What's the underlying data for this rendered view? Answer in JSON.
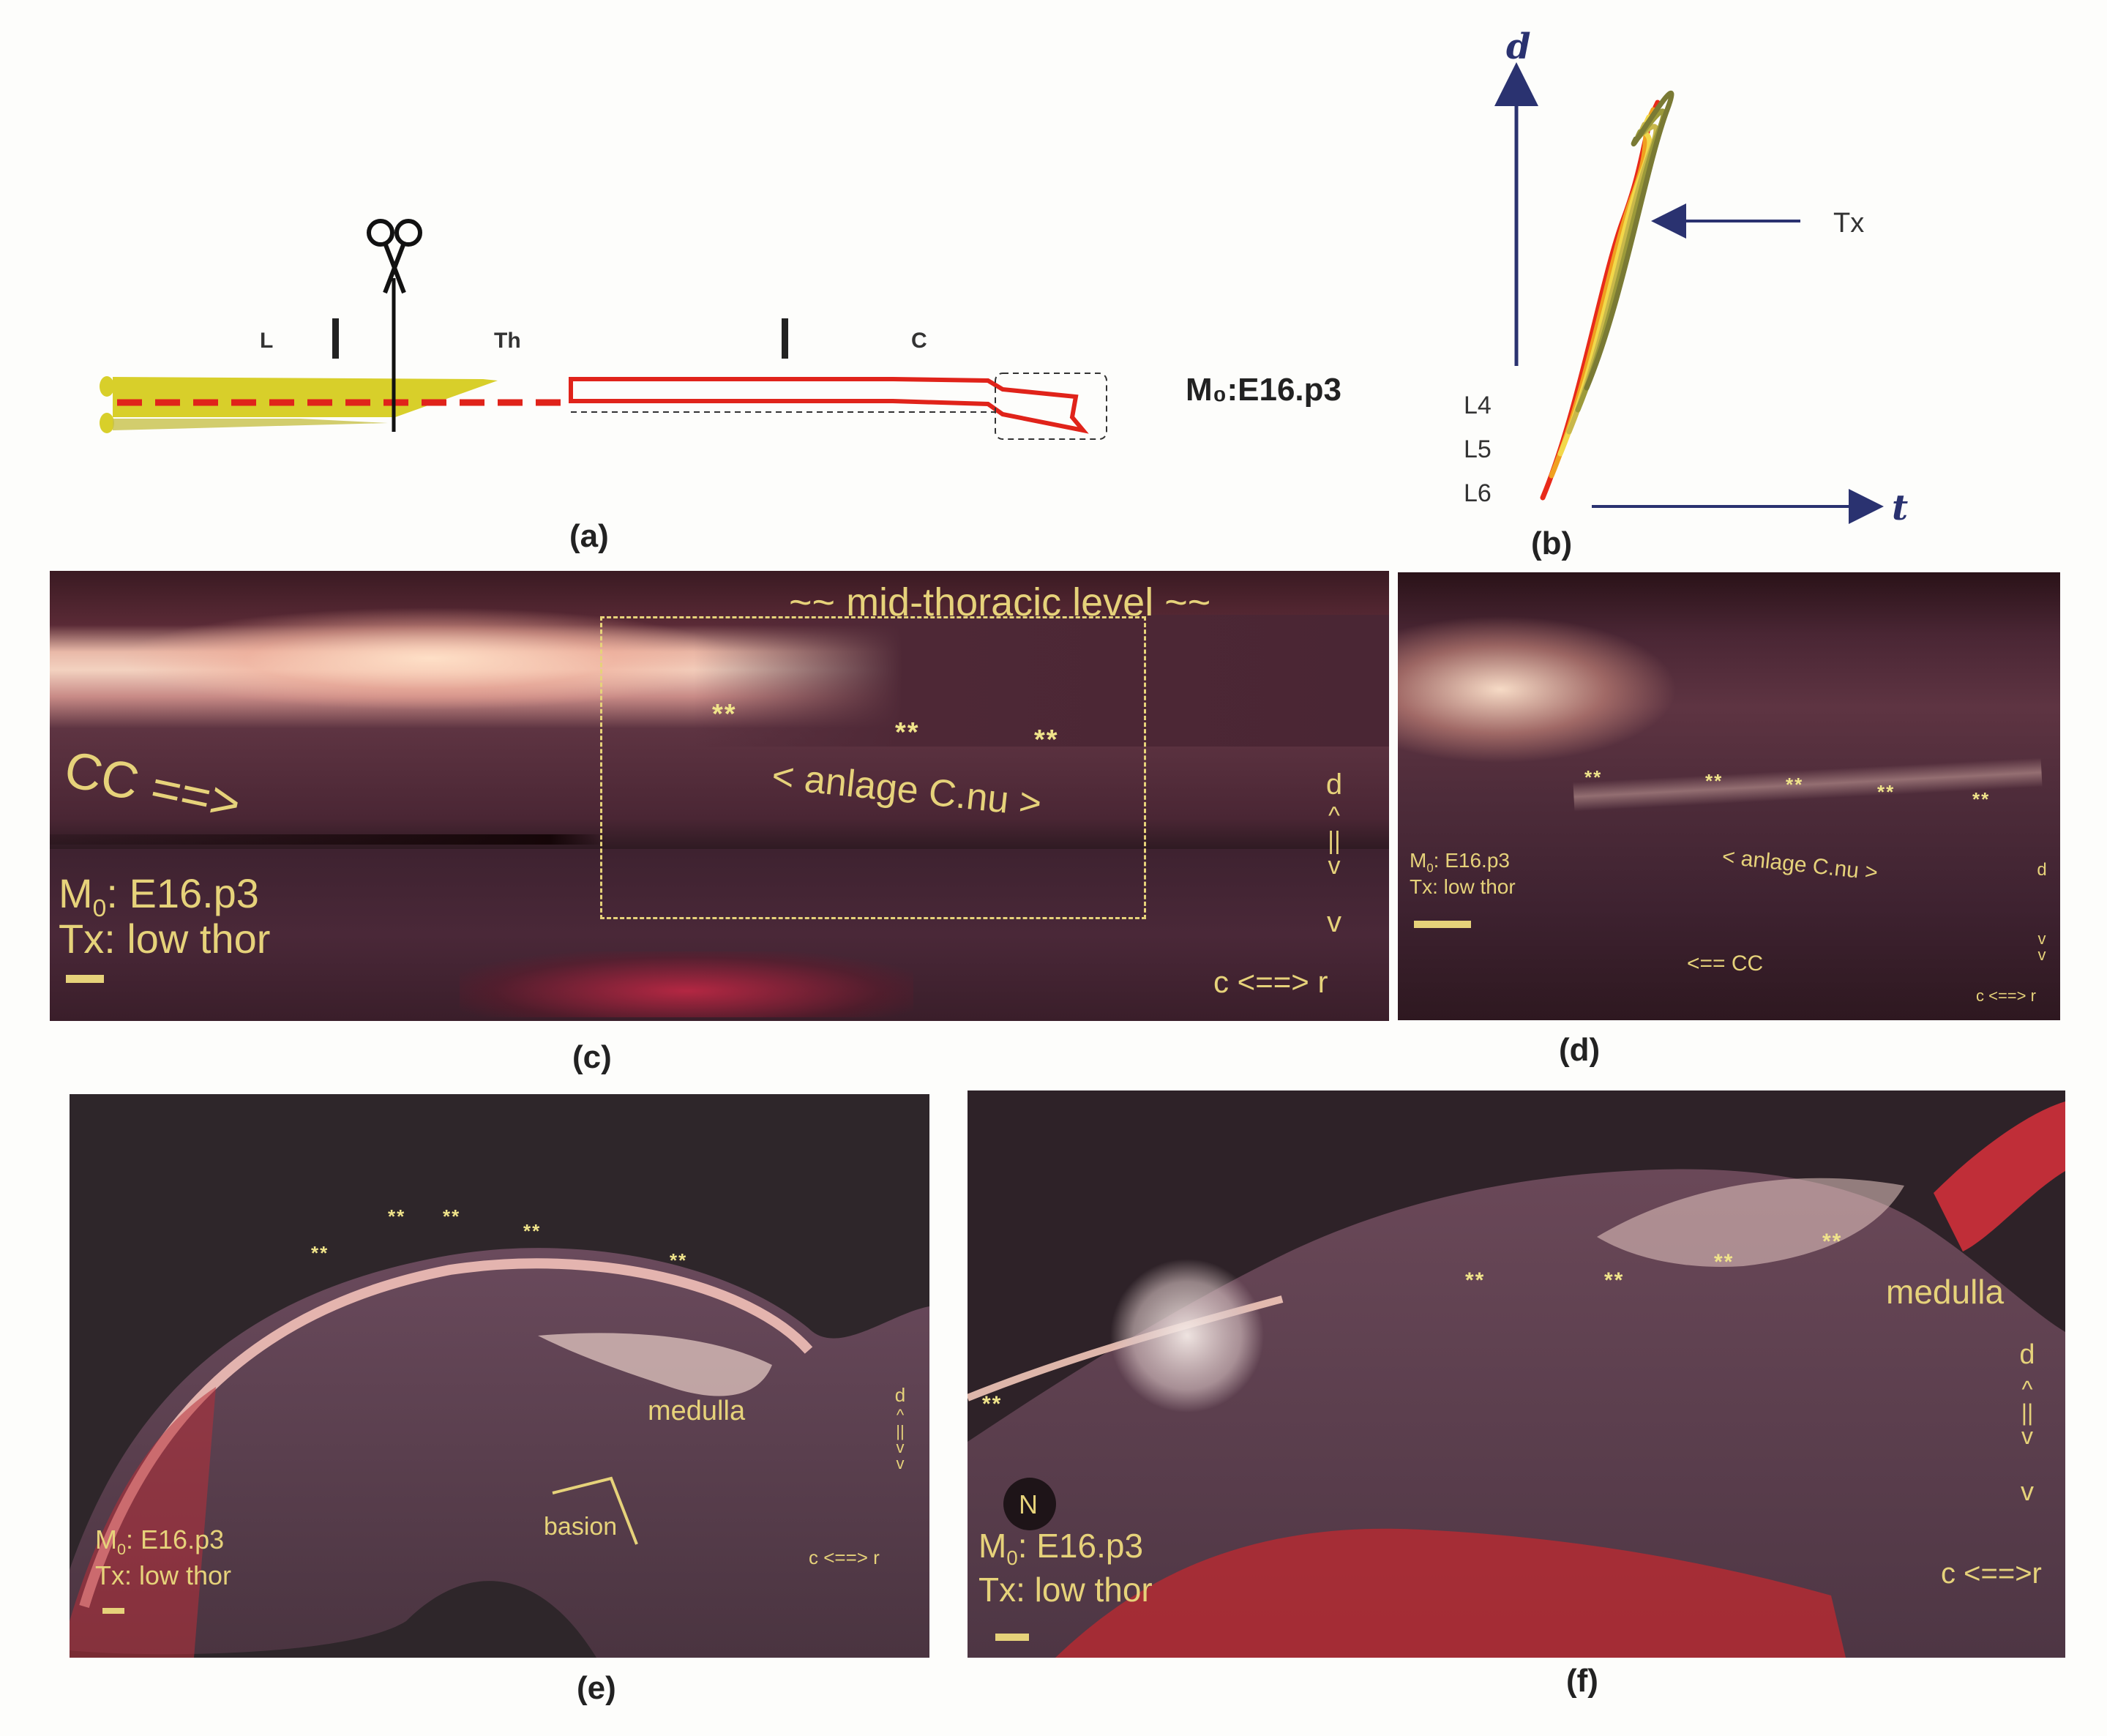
{
  "panels": {
    "a": {
      "label": "(a)",
      "seg_L": "L",
      "seg_Th": "Th",
      "seg_C": "C",
      "model": "M₀:E16.p3",
      "scissors": "scissors-icon"
    },
    "b": {
      "label": "(b)",
      "axis_d": "d",
      "axis_t": "t",
      "tx": "Tx",
      "levels": [
        "L4",
        "L5",
        "L6"
      ],
      "colors": [
        "#e82a1a",
        "#f0a020",
        "#f2d84a",
        "#c9b84a",
        "#9c9a3a",
        "#7a7a34"
      ]
    },
    "c": {
      "label": "(c)",
      "title": "~~ mid-thoracic level ~~",
      "cc": "CC ==>",
      "anlage": "< anlage C.nu >",
      "stars": [
        "**",
        "**",
        "**"
      ],
      "m0_prefix": "M",
      "m0_sub": "0",
      "m0_suffix": ": E16.p3",
      "tx": "Tx: low thor",
      "d": "d",
      "axis": "^\n||\nv",
      "v": "v",
      "cr": "c <==> r"
    },
    "d": {
      "label": "(d)",
      "anlage": "< anlage C.nu >",
      "cc": "<== CC",
      "stars": [
        "**",
        "**",
        "**",
        "**",
        "**"
      ],
      "m0_prefix": "M",
      "m0_sub": "0",
      "m0_suffix": ": E16.p3",
      "tx": "Tx: low thor",
      "d": "d",
      "v": "v\nv",
      "cr": "c <==> r"
    },
    "e": {
      "label": "(e)",
      "medulla": "medulla",
      "basion": "basion",
      "stars": [
        "**",
        "**",
        "**",
        "**",
        "**"
      ],
      "m0_prefix": "M",
      "m0_sub": "0",
      "m0_suffix": ": E16.p3",
      "tx": "Tx: low thor",
      "d": "d",
      "axis": "^\n||\nv\nv",
      "cr": "c <==> r"
    },
    "f": {
      "label": "(f)",
      "medulla": "medulla",
      "n": "N",
      "stars": [
        "**",
        "**",
        "**",
        "**",
        "**"
      ],
      "m0_prefix": "M",
      "m0_sub": "0",
      "m0_suffix": ": E16.p3",
      "tx": "Tx: low thor",
      "d": "d",
      "axis": "^\n||\nv",
      "v": "v",
      "cr": "c <==>r"
    }
  }
}
